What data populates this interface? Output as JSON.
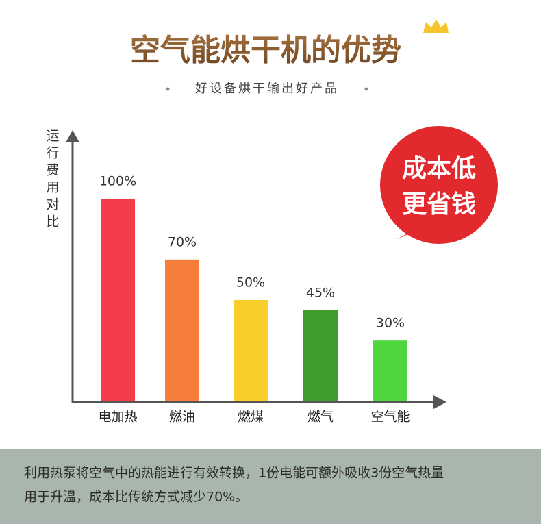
{
  "chart_data": {
    "type": "bar",
    "title": "空气能烘干机的优势",
    "subtitle": "好设备烘干输出好产品",
    "y_label": "运行费用对比",
    "categories": [
      "电加热",
      "燃油",
      "燃煤",
      "燃气",
      "空气能"
    ],
    "values": [
      100,
      70,
      50,
      45,
      30
    ],
    "value_labels": [
      "100%",
      "70%",
      "50%",
      "45%",
      "30%"
    ],
    "colors": [
      "#f43c4a",
      "#f77d3b",
      "#f8cd2a",
      "#3f9e2b",
      "#4dd63e"
    ],
    "badge": [
      "成本低",
      "更省钱"
    ]
  },
  "footer": {
    "lines": [
      "利用热泵将空气中的热能进行有效转换，1份电能可额外吸收3份空气热量",
      "用于升温，成本比传统方式减少70%。"
    ]
  }
}
